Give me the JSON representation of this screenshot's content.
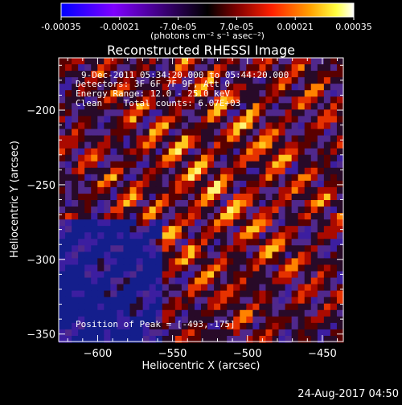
{
  "colorbar": {
    "tick_labels": [
      "-0.00035",
      "-0.00021",
      "-7.0e-05",
      "7.0e-05",
      "0.00021",
      "0.00035"
    ],
    "tick_values": [
      -0.00035,
      -0.00021,
      -7e-05,
      7e-05,
      0.00021,
      0.00035
    ],
    "range": [
      -0.00035,
      0.00035
    ],
    "units": "(photons cm⁻² s⁻¹ asec⁻²)",
    "colors": [
      "#0000ff",
      "#7f00ff",
      "#000000",
      "#7f0000",
      "#ff2000",
      "#ffa000",
      "#ffff40",
      "#ffffff"
    ]
  },
  "chart_data": {
    "type": "heatmap",
    "title": "Reconstructed RHESSI Image",
    "xlabel": "Heliocentric X (arcsec)",
    "ylabel": "Heliocentric Y (arcsec)",
    "xlim": [
      -626,
      -436
    ],
    "ylim": [
      -355,
      -165
    ],
    "x_ticks": [
      -600,
      -550,
      -500,
      -450
    ],
    "y_ticks": [
      -350,
      -300,
      -250,
      -200
    ],
    "peak_position": [
      -493,
      -175
    ],
    "info_lines": [
      "9-Dec-2011 05:34:20.000 to 05:44:20.000",
      "Detectors: 3F 6F 7F 9F, Att 0",
      "Energy Range: 12.0 - 25.0 keV",
      "Clean    Total counts: 6.07E+03"
    ],
    "peak_label": "Position of Peak = [-493,-175]"
  },
  "footer": {
    "timestamp": "24-Aug-2017 04:50"
  }
}
